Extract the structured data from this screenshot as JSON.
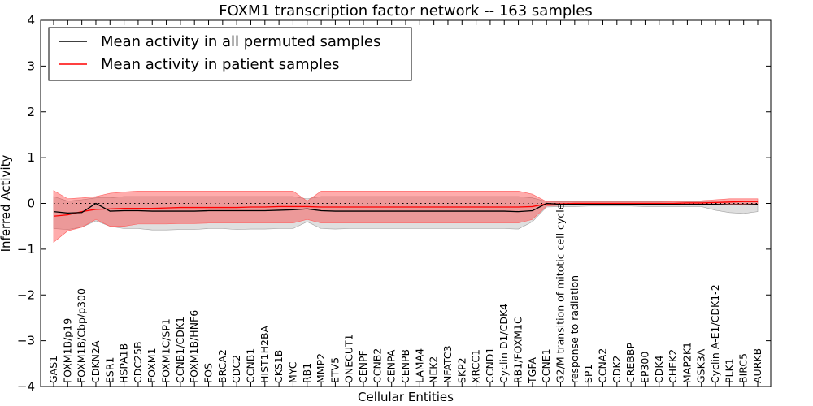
{
  "chart_data": {
    "type": "line",
    "title": "FOXM1 transcription factor network -- 163 samples",
    "xlabel": "Cellular Entities",
    "ylabel": "Inferred Activity",
    "ylim": [
      -4,
      4
    ],
    "yticks": [
      -4,
      -3,
      -2,
      -1,
      0,
      1,
      2,
      3,
      4
    ],
    "ytick_labels": [
      "−4",
      "−3",
      "−2",
      "−1",
      "0",
      "1",
      "2",
      "3",
      "4"
    ],
    "reference_line": 0,
    "legend_position": "top-left",
    "categories": [
      "GAS1",
      "FOXM1B/p19",
      "FOXM1B/Cbp/p300",
      "CDKN2A",
      "ESR1",
      "HSPA1B",
      "CDC25B",
      "FOXM1",
      "FOXM1C/SP1",
      "CCNB1/CDK1",
      "FOXM1B/HNF6",
      "FOS",
      "BRCA2",
      "CDC2",
      "CCNB1",
      "HIST1H2BA",
      "CKS1B",
      "MYC",
      "RB1",
      "MMP2",
      "ETV5",
      "ONECUT1",
      "CENPF",
      "CCNB2",
      "CENPA",
      "CENPB",
      "LAMA4",
      "NEK2",
      "NFATC3",
      "SKP2",
      "XRCC1",
      "CCND1",
      "Cyclin D1/CDK4",
      "RB1/FOXM1C",
      "TGFA",
      "CCNE1",
      "G2/M transition of mitotic cell cycle",
      "response to radiation",
      "SP1",
      "CCNA2",
      "CDK2",
      "CREBBP",
      "EP300",
      "CDK4",
      "CHEK2",
      "MAP2K1",
      "GSK3A",
      "Cyclin A-E1/CDK1-2",
      "PLK1",
      "BIRC5",
      "AURKB"
    ],
    "series": [
      {
        "name": "Mean activity in all permuted samples",
        "color": "#000000",
        "values": [
          -0.18,
          -0.21,
          -0.2,
          0.0,
          -0.17,
          -0.16,
          -0.16,
          -0.17,
          -0.17,
          -0.17,
          -0.17,
          -0.16,
          -0.16,
          -0.16,
          -0.16,
          -0.16,
          -0.15,
          -0.14,
          -0.12,
          -0.16,
          -0.17,
          -0.17,
          -0.17,
          -0.17,
          -0.17,
          -0.17,
          -0.17,
          -0.17,
          -0.17,
          -0.17,
          -0.17,
          -0.17,
          -0.17,
          -0.18,
          -0.16,
          0.0,
          -0.02,
          -0.02,
          -0.02,
          -0.02,
          -0.02,
          -0.02,
          -0.02,
          -0.02,
          -0.02,
          -0.02,
          -0.02,
          -0.02,
          -0.03,
          -0.03,
          -0.02
        ],
        "band_lower": [
          -0.55,
          -0.57,
          -0.52,
          -0.38,
          -0.5,
          -0.55,
          -0.55,
          -0.58,
          -0.58,
          -0.57,
          -0.57,
          -0.55,
          -0.55,
          -0.57,
          -0.56,
          -0.56,
          -0.55,
          -0.55,
          -0.4,
          -0.55,
          -0.56,
          -0.55,
          -0.55,
          -0.55,
          -0.55,
          -0.55,
          -0.55,
          -0.55,
          -0.55,
          -0.55,
          -0.55,
          -0.55,
          -0.55,
          -0.56,
          -0.4,
          -0.08,
          -0.07,
          -0.07,
          -0.06,
          -0.06,
          -0.06,
          -0.06,
          -0.07,
          -0.07,
          -0.07,
          -0.07,
          -0.07,
          -0.15,
          -0.2,
          -0.22,
          -0.18
        ],
        "band_upper": [
          0.15,
          0.05,
          0.08,
          0.12,
          0.12,
          0.15,
          0.15,
          0.15,
          0.15,
          0.15,
          0.15,
          0.15,
          0.15,
          0.15,
          0.15,
          0.15,
          0.15,
          0.15,
          0.1,
          0.15,
          0.15,
          0.15,
          0.15,
          0.15,
          0.15,
          0.15,
          0.15,
          0.15,
          0.15,
          0.15,
          0.15,
          0.15,
          0.15,
          0.15,
          0.12,
          0.04,
          0.04,
          0.04,
          0.04,
          0.04,
          0.04,
          0.04,
          0.04,
          0.04,
          0.04,
          0.04,
          0.04,
          0.05,
          0.05,
          0.05,
          0.05
        ]
      },
      {
        "name": "Mean activity in patient samples",
        "color": "#ff0000",
        "values": [
          -0.28,
          -0.25,
          -0.18,
          -0.13,
          -0.12,
          -0.11,
          -0.11,
          -0.11,
          -0.1,
          -0.09,
          -0.09,
          -0.09,
          -0.09,
          -0.09,
          -0.08,
          -0.08,
          -0.07,
          -0.07,
          -0.07,
          -0.08,
          -0.08,
          -0.08,
          -0.08,
          -0.08,
          -0.08,
          -0.08,
          -0.08,
          -0.08,
          -0.08,
          -0.08,
          -0.08,
          -0.08,
          -0.08,
          -0.08,
          -0.07,
          -0.01,
          -0.01,
          0.0,
          0.0,
          0.0,
          0.0,
          0.0,
          0.0,
          0.0,
          0.0,
          0.01,
          0.01,
          0.02,
          0.03,
          0.04,
          0.04
        ],
        "band_lower": [
          -0.85,
          -0.6,
          -0.52,
          -0.35,
          -0.5,
          -0.5,
          -0.45,
          -0.45,
          -0.45,
          -0.44,
          -0.44,
          -0.43,
          -0.43,
          -0.43,
          -0.43,
          -0.43,
          -0.43,
          -0.43,
          -0.35,
          -0.43,
          -0.43,
          -0.43,
          -0.43,
          -0.43,
          -0.43,
          -0.43,
          -0.43,
          -0.43,
          -0.43,
          -0.43,
          -0.43,
          -0.43,
          -0.43,
          -0.43,
          -0.35,
          -0.06,
          -0.04,
          -0.03,
          -0.03,
          -0.03,
          -0.03,
          -0.03,
          -0.03,
          -0.03,
          -0.03,
          -0.02,
          -0.02,
          -0.02,
          -0.02,
          -0.01,
          -0.01
        ],
        "band_upper": [
          0.28,
          0.1,
          0.12,
          0.15,
          0.22,
          0.25,
          0.27,
          0.27,
          0.27,
          0.27,
          0.27,
          0.27,
          0.27,
          0.27,
          0.27,
          0.27,
          0.27,
          0.27,
          0.05,
          0.27,
          0.27,
          0.27,
          0.27,
          0.27,
          0.27,
          0.27,
          0.27,
          0.27,
          0.27,
          0.27,
          0.27,
          0.27,
          0.27,
          0.27,
          0.2,
          0.04,
          0.03,
          0.03,
          0.03,
          0.03,
          0.03,
          0.03,
          0.03,
          0.03,
          0.04,
          0.05,
          0.06,
          0.08,
          0.1,
          0.1,
          0.1
        ]
      }
    ]
  }
}
